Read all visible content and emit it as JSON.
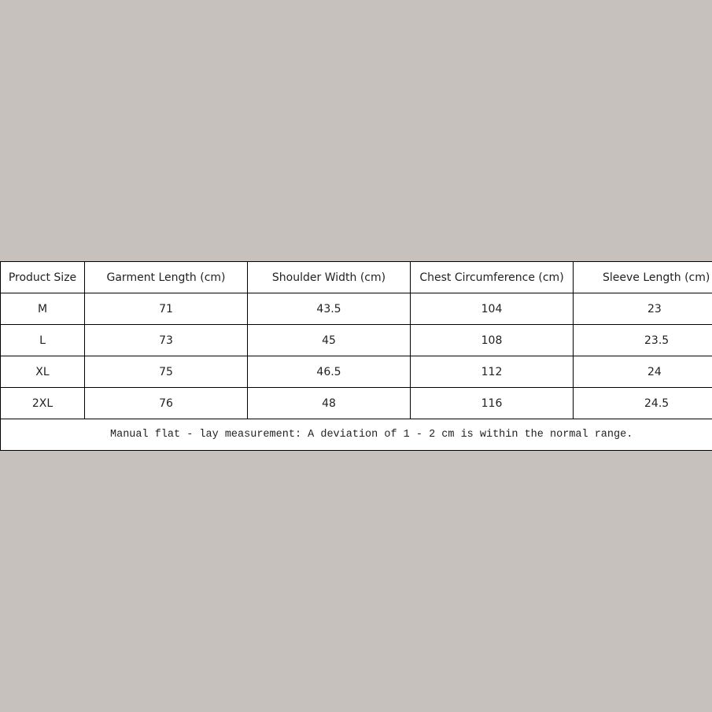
{
  "table": {
    "headers": [
      "Product Size",
      "Garment Length (cm)",
      "Shoulder Width (cm)",
      "Chest Circumference (cm)",
      "Sleeve Length (cm)"
    ],
    "rows": [
      [
        "M",
        "71",
        "43.5",
        "104",
        "23"
      ],
      [
        "L",
        "73",
        "45",
        "108",
        "23.5"
      ],
      [
        "XL",
        "75",
        "46.5",
        "112",
        "24"
      ],
      [
        "2XL",
        "76",
        "48",
        "116",
        "24.5"
      ]
    ],
    "note": "Manual flat - lay measurement: A deviation of 1 - 2 cm is within the normal range."
  },
  "colors": {
    "background": "#c6c1bc",
    "table": "#ffffff",
    "border": "#000000"
  }
}
